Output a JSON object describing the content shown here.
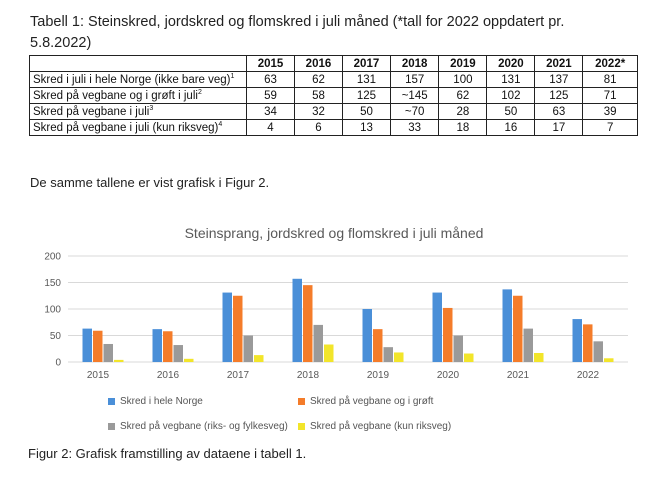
{
  "caption": {
    "line1": "Tabell 1: Steinskred, jordskred og flomskred i juli måned (*tall for 2022 oppdatert pr.",
    "line2": "5.8.2022)"
  },
  "table": {
    "columns": [
      "",
      "2015",
      "2016",
      "2017",
      "2018",
      "2019",
      "2020",
      "2021",
      "2022*"
    ],
    "rows": [
      {
        "label": "Skred i juli i hele Norge (ikke bare veg)",
        "note": "1",
        "values": [
          "63",
          "62",
          "131",
          "157",
          "100",
          "131",
          "137",
          "81"
        ]
      },
      {
        "label": "Skred på vegbane og i grøft i juli",
        "note": "2",
        "values": [
          "59",
          "58",
          "125",
          "~145",
          "62",
          "102",
          "125",
          "71"
        ]
      },
      {
        "label": "Skred på vegbane i juli",
        "note": "3",
        "values": [
          "34",
          "32",
          "50",
          "~70",
          "28",
          "50",
          "63",
          "39"
        ]
      },
      {
        "label": "Skred på vegbane i juli (kun riksveg)",
        "note": "4",
        "values": [
          "4",
          "6",
          "13",
          "33",
          "18",
          "16",
          "17",
          "7"
        ]
      }
    ]
  },
  "reference_text": "De samme tallene er vist grafisk i Figur 2.",
  "chart_data": {
    "type": "bar",
    "title": "Steinsprang, jordskred og flomskred i juli måned",
    "categories": [
      "2015",
      "2016",
      "2017",
      "2018",
      "2019",
      "2020",
      "2021",
      "2022"
    ],
    "ylim": [
      0,
      200
    ],
    "yticks": [
      "0",
      "50",
      "100",
      "150",
      "200"
    ],
    "grid": true,
    "legend_position": "bottom",
    "series": [
      {
        "name": "Skred i hele Norge",
        "color": "#4a8fd8",
        "values": [
          63,
          62,
          131,
          157,
          100,
          131,
          137,
          81
        ]
      },
      {
        "name": "Skred på vegbane og i grøft",
        "color": "#f47c2a",
        "values": [
          59,
          58,
          125,
          145,
          62,
          102,
          125,
          71
        ]
      },
      {
        "name": "Skred på vegbane (riks- og fylkesveg)",
        "color": "#9a9a9a",
        "values": [
          34,
          32,
          50,
          70,
          28,
          50,
          63,
          39
        ]
      },
      {
        "name": "Skred på vegbane (kun riksveg)",
        "color": "#f2e52a",
        "values": [
          4,
          6,
          13,
          33,
          18,
          16,
          17,
          7
        ]
      }
    ]
  },
  "figure_caption": "Figur 2: Grafisk framstilling av dataene i tabell 1."
}
